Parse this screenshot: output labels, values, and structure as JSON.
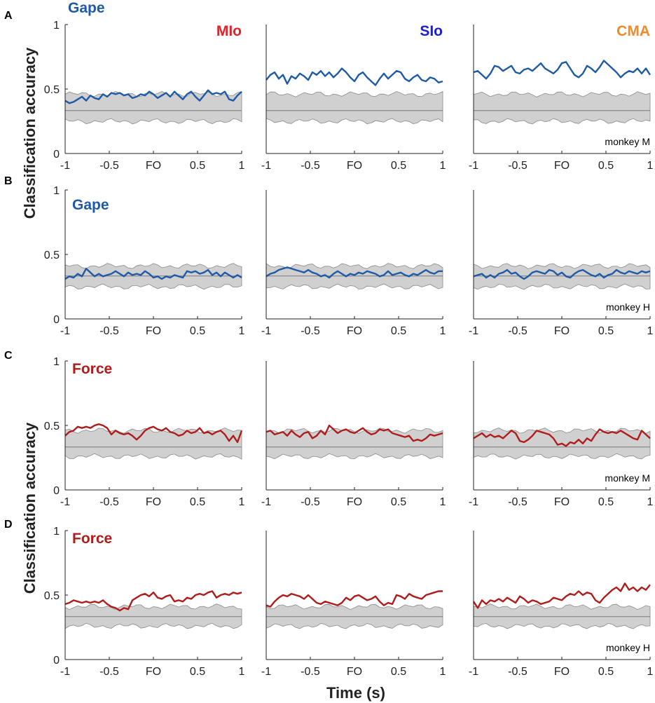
{
  "chart_data": {
    "type": "line",
    "ylabel": "Classification accuracy",
    "xlabel": "Time (s)",
    "xlim": [
      -1,
      1
    ],
    "ylim": [
      0,
      1
    ],
    "x_tick_values": [
      -1,
      -0.5,
      0,
      0.5,
      1
    ],
    "x_tick_labels": [
      "-1",
      "-0.5",
      "FO",
      "0.5",
      "1"
    ],
    "y_tick_values": [
      0,
      0.5,
      1
    ],
    "y_tick_labels": [
      "0",
      "0.5",
      "1"
    ],
    "chance_level": 0.333,
    "area_titles": [
      "MIo",
      "SIo",
      "CMA"
    ],
    "colors": {
      "gape": "#1f5aa6",
      "force": "#b01c1c",
      "MIo": "#e0232b",
      "SIo": "#1a1fd6",
      "CMA": "#f08a2a",
      "band": "#d0d0d0"
    },
    "band_limits": {
      "A": [
        0.25,
        0.46
      ],
      "B": [
        0.25,
        0.41
      ],
      "C": [
        0.26,
        0.46
      ],
      "D": [
        0.26,
        0.41
      ]
    },
    "rows": [
      {
        "panel": "A",
        "variable": "Gape",
        "monkey": "monkey M",
        "series": [
          {
            "area": "MIo",
            "values": [
              0.41,
              0.39,
              0.4,
              0.42,
              0.44,
              0.41,
              0.45,
              0.43,
              0.42,
              0.46,
              0.44,
              0.47,
              0.46,
              0.47,
              0.45,
              0.46,
              0.43,
              0.44,
              0.46,
              0.45,
              0.48,
              0.46,
              0.43,
              0.45,
              0.47,
              0.44,
              0.48,
              0.45,
              0.42,
              0.46,
              0.48,
              0.44,
              0.41,
              0.45,
              0.49,
              0.46,
              0.47,
              0.46,
              0.48,
              0.42,
              0.41,
              0.45,
              0.48
            ]
          },
          {
            "area": "SIo",
            "values": [
              0.57,
              0.61,
              0.63,
              0.58,
              0.61,
              0.54,
              0.6,
              0.58,
              0.62,
              0.6,
              0.57,
              0.63,
              0.61,
              0.64,
              0.6,
              0.63,
              0.59,
              0.62,
              0.66,
              0.63,
              0.59,
              0.56,
              0.61,
              0.63,
              0.59,
              0.56,
              0.53,
              0.58,
              0.62,
              0.58,
              0.61,
              0.64,
              0.63,
              0.58,
              0.56,
              0.59,
              0.61,
              0.57,
              0.56,
              0.59,
              0.58,
              0.55,
              0.56
            ]
          },
          {
            "area": "CMA",
            "values": [
              0.63,
              0.64,
              0.61,
              0.58,
              0.62,
              0.68,
              0.67,
              0.64,
              0.66,
              0.68,
              0.63,
              0.62,
              0.65,
              0.66,
              0.64,
              0.67,
              0.7,
              0.66,
              0.64,
              0.62,
              0.65,
              0.7,
              0.71,
              0.66,
              0.61,
              0.59,
              0.62,
              0.68,
              0.66,
              0.63,
              0.67,
              0.72,
              0.69,
              0.66,
              0.63,
              0.59,
              0.62,
              0.64,
              0.63,
              0.66,
              0.62,
              0.66,
              0.61
            ]
          }
        ]
      },
      {
        "panel": "B",
        "variable": "Gape",
        "monkey": "monkey H",
        "series": [
          {
            "area": "MIo",
            "values": [
              0.31,
              0.33,
              0.32,
              0.35,
              0.33,
              0.39,
              0.36,
              0.33,
              0.35,
              0.33,
              0.34,
              0.35,
              0.37,
              0.35,
              0.33,
              0.36,
              0.34,
              0.35,
              0.34,
              0.37,
              0.35,
              0.32,
              0.33,
              0.31,
              0.33,
              0.32,
              0.34,
              0.33,
              0.32,
              0.37,
              0.36,
              0.37,
              0.35,
              0.36,
              0.38,
              0.34,
              0.36,
              0.33,
              0.36,
              0.34,
              0.32,
              0.34,
              0.32
            ]
          },
          {
            "area": "SIo",
            "values": [
              0.33,
              0.35,
              0.36,
              0.38,
              0.39,
              0.4,
              0.39,
              0.38,
              0.37,
              0.36,
              0.38,
              0.36,
              0.35,
              0.33,
              0.34,
              0.32,
              0.35,
              0.37,
              0.35,
              0.33,
              0.35,
              0.34,
              0.36,
              0.35,
              0.37,
              0.36,
              0.35,
              0.33,
              0.34,
              0.37,
              0.34,
              0.35,
              0.36,
              0.34,
              0.33,
              0.35,
              0.34,
              0.36,
              0.38,
              0.36,
              0.35,
              0.37,
              0.37
            ]
          },
          {
            "area": "CMA",
            "values": [
              0.33,
              0.34,
              0.35,
              0.32,
              0.34,
              0.32,
              0.35,
              0.36,
              0.38,
              0.35,
              0.36,
              0.33,
              0.31,
              0.33,
              0.36,
              0.37,
              0.36,
              0.35,
              0.38,
              0.37,
              0.34,
              0.36,
              0.33,
              0.32,
              0.35,
              0.37,
              0.38,
              0.36,
              0.34,
              0.33,
              0.35,
              0.32,
              0.34,
              0.35,
              0.38,
              0.36,
              0.35,
              0.37,
              0.36,
              0.35,
              0.37,
              0.36,
              0.37
            ]
          }
        ]
      },
      {
        "panel": "C",
        "variable": "Force",
        "monkey": "monkey M",
        "series": [
          {
            "area": "MIo",
            "values": [
              0.42,
              0.45,
              0.46,
              0.49,
              0.48,
              0.49,
              0.48,
              0.5,
              0.51,
              0.5,
              0.48,
              0.43,
              0.46,
              0.44,
              0.43,
              0.44,
              0.42,
              0.39,
              0.42,
              0.46,
              0.48,
              0.49,
              0.47,
              0.46,
              0.48,
              0.45,
              0.44,
              0.42,
              0.43,
              0.46,
              0.44,
              0.45,
              0.48,
              0.44,
              0.45,
              0.43,
              0.45,
              0.46,
              0.43,
              0.38,
              0.42,
              0.37,
              0.46
            ]
          },
          {
            "area": "SIo",
            "values": [
              0.45,
              0.46,
              0.43,
              0.44,
              0.45,
              0.42,
              0.46,
              0.43,
              0.41,
              0.44,
              0.45,
              0.4,
              0.42,
              0.46,
              0.43,
              0.5,
              0.47,
              0.44,
              0.46,
              0.47,
              0.45,
              0.44,
              0.46,
              0.48,
              0.45,
              0.43,
              0.44,
              0.47,
              0.46,
              0.47,
              0.44,
              0.43,
              0.42,
              0.41,
              0.42,
              0.38,
              0.39,
              0.38,
              0.4,
              0.43,
              0.42,
              0.43,
              0.44
            ]
          },
          {
            "area": "CMA",
            "values": [
              0.4,
              0.42,
              0.44,
              0.41,
              0.43,
              0.41,
              0.42,
              0.4,
              0.43,
              0.46,
              0.44,
              0.38,
              0.37,
              0.39,
              0.42,
              0.46,
              0.45,
              0.44,
              0.43,
              0.4,
              0.35,
              0.36,
              0.34,
              0.37,
              0.36,
              0.39,
              0.36,
              0.4,
              0.38,
              0.43,
              0.47,
              0.45,
              0.44,
              0.45,
              0.44,
              0.46,
              0.44,
              0.42,
              0.4,
              0.39,
              0.46,
              0.43,
              0.4
            ]
          }
        ]
      },
      {
        "panel": "D",
        "variable": "Force",
        "monkey": "monkey H",
        "series": [
          {
            "area": "MIo",
            "values": [
              0.43,
              0.44,
              0.46,
              0.45,
              0.44,
              0.45,
              0.44,
              0.45,
              0.44,
              0.46,
              0.43,
              0.41,
              0.4,
              0.38,
              0.4,
              0.39,
              0.46,
              0.48,
              0.5,
              0.51,
              0.49,
              0.52,
              0.48,
              0.47,
              0.49,
              0.5,
              0.45,
              0.46,
              0.45,
              0.48,
              0.47,
              0.5,
              0.51,
              0.5,
              0.52,
              0.53,
              0.48,
              0.5,
              0.51,
              0.5,
              0.52,
              0.51,
              0.52
            ]
          },
          {
            "area": "SIo",
            "values": [
              0.42,
              0.41,
              0.45,
              0.48,
              0.5,
              0.49,
              0.51,
              0.5,
              0.49,
              0.47,
              0.5,
              0.47,
              0.44,
              0.43,
              0.45,
              0.44,
              0.43,
              0.42,
              0.44,
              0.48,
              0.46,
              0.49,
              0.5,
              0.48,
              0.46,
              0.47,
              0.49,
              0.45,
              0.42,
              0.44,
              0.43,
              0.5,
              0.49,
              0.47,
              0.51,
              0.49,
              0.48,
              0.47,
              0.5,
              0.51,
              0.52,
              0.53,
              0.53
            ]
          },
          {
            "area": "CMA",
            "values": [
              0.45,
              0.4,
              0.46,
              0.43,
              0.46,
              0.45,
              0.47,
              0.45,
              0.48,
              0.46,
              0.44,
              0.49,
              0.47,
              0.44,
              0.46,
              0.45,
              0.43,
              0.44,
              0.45,
              0.48,
              0.47,
              0.46,
              0.49,
              0.51,
              0.5,
              0.53,
              0.5,
              0.52,
              0.51,
              0.46,
              0.44,
              0.48,
              0.51,
              0.54,
              0.56,
              0.53,
              0.59,
              0.54,
              0.56,
              0.53,
              0.56,
              0.54,
              0.58
            ]
          }
        ]
      }
    ]
  }
}
